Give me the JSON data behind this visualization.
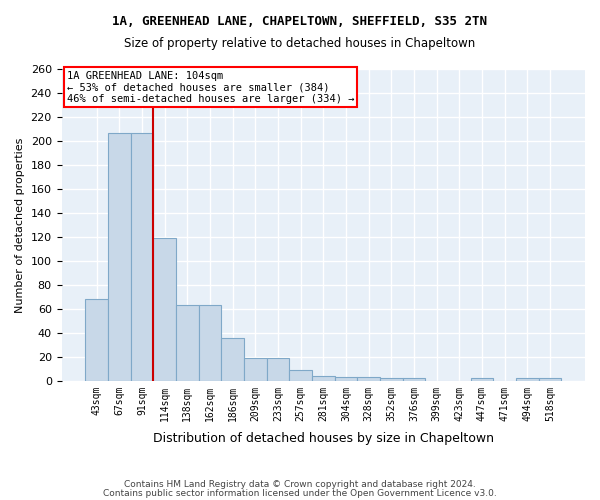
{
  "title1": "1A, GREENHEAD LANE, CHAPELTOWN, SHEFFIELD, S35 2TN",
  "title2": "Size of property relative to detached houses in Chapeltown",
  "xlabel": "Distribution of detached houses by size in Chapeltown",
  "ylabel": "Number of detached properties",
  "categories": [
    "43sqm",
    "67sqm",
    "91sqm",
    "114sqm",
    "138sqm",
    "162sqm",
    "186sqm",
    "209sqm",
    "233sqm",
    "257sqm",
    "281sqm",
    "304sqm",
    "328sqm",
    "352sqm",
    "376sqm",
    "399sqm",
    "423sqm",
    "447sqm",
    "471sqm",
    "494sqm",
    "518sqm"
  ],
  "values": [
    68,
    207,
    207,
    119,
    63,
    63,
    36,
    19,
    19,
    9,
    4,
    3,
    3,
    2,
    2,
    0,
    0,
    2,
    0,
    2,
    2
  ],
  "bar_color": "#c8d8e8",
  "bar_edge_color": "#7fa8c8",
  "annotation_text": "1A GREENHEAD LANE: 104sqm\n← 53% of detached houses are smaller (384)\n46% of semi-detached houses are larger (334) →",
  "red_line_color": "#cc0000",
  "background_color": "#e8f0f8",
  "grid_color": "white",
  "footer1": "Contains HM Land Registry data © Crown copyright and database right 2024.",
  "footer2": "Contains public sector information licensed under the Open Government Licence v3.0.",
  "ylim": [
    0,
    260
  ],
  "yticks": [
    0,
    20,
    40,
    60,
    80,
    100,
    120,
    140,
    160,
    180,
    200,
    220,
    240,
    260
  ],
  "red_line_x": 2.5
}
